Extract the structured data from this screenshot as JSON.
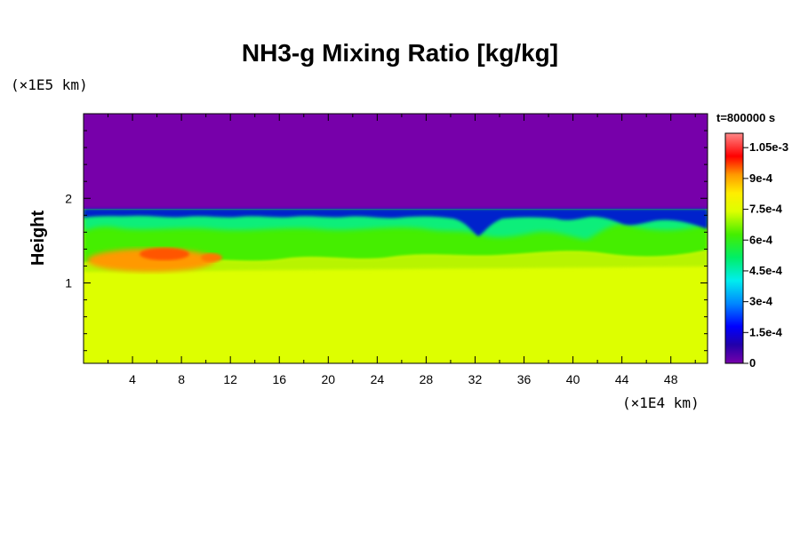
{
  "chart_data": {
    "type": "heatmap",
    "title": "NH3-g Mixing Ratio [kg/kg]",
    "ylabel": "Height",
    "y_unit": "(×1E5 km)",
    "x_unit": "(×1E4 km)",
    "time_label": "t=800000 s",
    "x_ticks": [
      4,
      8,
      12,
      16,
      20,
      24,
      28,
      32,
      36,
      40,
      44,
      48
    ],
    "xlim": [
      0,
      51
    ],
    "y_ticks": [
      1,
      2
    ],
    "ylim": [
      0.05,
      3.0
    ],
    "colorbar": {
      "range": [
        0,
        0.00112
      ],
      "labels": [
        "1.05e-3",
        "9e-4",
        "7.5e-4",
        "6e-4",
        "4.5e-4",
        "3e-4",
        "1.5e-4",
        "0"
      ],
      "values": [
        0.00105,
        0.0009,
        0.00075,
        0.0006,
        0.00045,
        0.0003,
        0.00015,
        0
      ]
    },
    "regions": [
      {
        "name": "upper layer",
        "value": 0,
        "y_range": [
          1.83,
          3.0
        ]
      },
      {
        "name": "lower layer",
        "value": 0.00076,
        "y_range": [
          0.05,
          1.4
        ]
      },
      {
        "name": "mixing layer",
        "value": 0.0006,
        "y_range": [
          1.4,
          1.83
        ]
      },
      {
        "name": "enhanced patch",
        "value": 0.00092,
        "x_range": [
          1,
          11
        ],
        "y_range": [
          1.1,
          1.4
        ]
      }
    ],
    "colors": {
      "upper_layer": "#7700aa",
      "lower_layer": "#ddff00",
      "mixing_green": "#44ee00",
      "interface_blue": "#0022cc",
      "enhanced_orange": "#ff6600"
    }
  }
}
